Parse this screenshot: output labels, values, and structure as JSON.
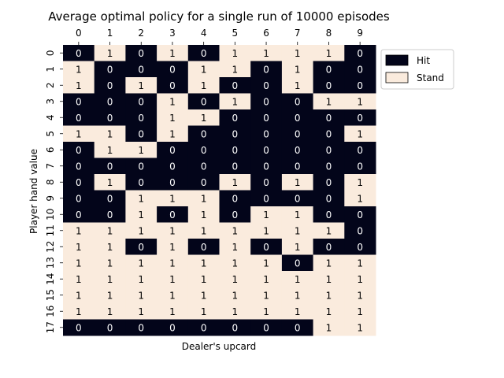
{
  "chart_data": {
    "type": "heatmap",
    "title": "Average optimal policy for a single run of  10000 episodes",
    "xlabel": "Dealer's upcard",
    "ylabel": "Player hand value",
    "x_ticks": [
      "0",
      "1",
      "2",
      "3",
      "4",
      "5",
      "6",
      "7",
      "8",
      "9"
    ],
    "y_ticks": [
      "0",
      "1",
      "2",
      "3",
      "4",
      "5",
      "6",
      "7",
      "8",
      "9",
      "10",
      "11",
      "12",
      "13",
      "14",
      "15",
      "16",
      "17"
    ],
    "x_axis_position": "top",
    "grid": false,
    "legend": {
      "placement": "top-right",
      "entries": [
        {
          "label": "Hit",
          "value": 0,
          "color": "#03051a"
        },
        {
          "label": "Stand",
          "value": 1,
          "color": "#faebdd"
        }
      ]
    },
    "values": [
      [
        0,
        1,
        0,
        1,
        0,
        1,
        1,
        1,
        1,
        0
      ],
      [
        1,
        0,
        0,
        0,
        1,
        1,
        0,
        1,
        0,
        0
      ],
      [
        1,
        0,
        1,
        0,
        1,
        0,
        0,
        1,
        0,
        0
      ],
      [
        0,
        0,
        0,
        1,
        0,
        1,
        0,
        0,
        1,
        1
      ],
      [
        0,
        0,
        0,
        1,
        1,
        0,
        0,
        0,
        0,
        0
      ],
      [
        1,
        1,
        0,
        1,
        0,
        0,
        0,
        0,
        0,
        1
      ],
      [
        0,
        1,
        1,
        0,
        0,
        0,
        0,
        0,
        0,
        0
      ],
      [
        0,
        0,
        0,
        0,
        0,
        0,
        0,
        0,
        0,
        0
      ],
      [
        0,
        1,
        0,
        0,
        0,
        1,
        0,
        1,
        0,
        1
      ],
      [
        0,
        0,
        1,
        1,
        1,
        0,
        0,
        0,
        0,
        1
      ],
      [
        0,
        0,
        1,
        0,
        1,
        0,
        1,
        1,
        0,
        0
      ],
      [
        1,
        1,
        1,
        1,
        1,
        1,
        1,
        1,
        1,
        0
      ],
      [
        1,
        1,
        0,
        1,
        0,
        1,
        0,
        1,
        0,
        0
      ],
      [
        1,
        1,
        1,
        1,
        1,
        1,
        1,
        0,
        1,
        1
      ],
      [
        1,
        1,
        1,
        1,
        1,
        1,
        1,
        1,
        1,
        1
      ],
      [
        1,
        1,
        1,
        1,
        1,
        1,
        1,
        1,
        1,
        1
      ],
      [
        1,
        1,
        1,
        1,
        1,
        1,
        1,
        1,
        1,
        1
      ],
      [
        0,
        0,
        0,
        0,
        0,
        0,
        0,
        0,
        1,
        1
      ]
    ]
  }
}
